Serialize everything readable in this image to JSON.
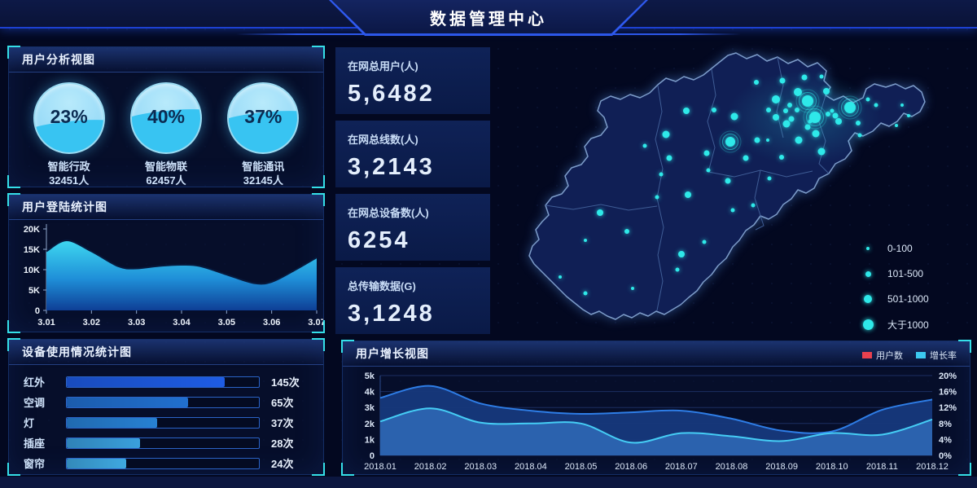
{
  "header": {
    "title": "数据管理中心"
  },
  "panels": {
    "user_analysis": {
      "title": "用户分析视图",
      "gauges": [
        {
          "pct": 23,
          "label": "智能行政",
          "count": "32451人"
        },
        {
          "pct": 40,
          "label": "智能物联",
          "count": "62457人"
        },
        {
          "pct": 37,
          "label": "智能通讯",
          "count": "32145人"
        }
      ]
    },
    "login_stats": {
      "title": "用户登陆统计图"
    },
    "device_usage": {
      "title": "设备使用情况统计图"
    },
    "user_growth": {
      "title": "用户增长视图"
    }
  },
  "stat_cards": [
    {
      "label": "在网总用户(人)",
      "value": "5,6482"
    },
    {
      "label": "在网总线数(人)",
      "value": "3,2143"
    },
    {
      "label": "在网总设备数(人)",
      "value": "6254"
    },
    {
      "label": "总传输数据(G)",
      "value": "3,1248"
    }
  ],
  "map": {
    "dot_color": "#2ee9e9",
    "legend": [
      {
        "label": "0-100",
        "dot": 4
      },
      {
        "label": "101-500",
        "dot": 7
      },
      {
        "label": "501-1000",
        "dot": 10
      },
      {
        "label": "大于1000",
        "dot": 13
      }
    ],
    "points": [
      {
        "x": 380,
        "y": 79,
        "r": 7,
        "halo": true
      },
      {
        "x": 389,
        "y": 99,
        "r": 7,
        "halo": true
      },
      {
        "x": 432,
        "y": 87,
        "r": 7,
        "halo": true
      },
      {
        "x": 285,
        "y": 129,
        "r": 6,
        "halo": true
      },
      {
        "x": 368,
        "y": 68,
        "r": 5
      },
      {
        "x": 341,
        "y": 77,
        "r": 5
      },
      {
        "x": 403,
        "y": 67,
        "r": 4
      },
      {
        "x": 397,
        "y": 141,
        "r": 4.5
      },
      {
        "x": 390,
        "y": 119,
        "r": 4.5
      },
      {
        "x": 369,
        "y": 127,
        "r": 4.5
      },
      {
        "x": 354,
        "y": 107,
        "r": 4.5
      },
      {
        "x": 290,
        "y": 98,
        "r": 4.5
      },
      {
        "x": 206,
        "y": 120,
        "r": 4.5
      },
      {
        "x": 231,
        "y": 91,
        "r": 4
      },
      {
        "x": 210,
        "y": 149,
        "r": 3.5
      },
      {
        "x": 233,
        "y": 194,
        "r": 4
      },
      {
        "x": 304,
        "y": 149,
        "r": 3.5
      },
      {
        "x": 282,
        "y": 177,
        "r": 3.5
      },
      {
        "x": 318,
        "y": 127,
        "r": 3.5
      },
      {
        "x": 348,
        "y": 148,
        "r": 3
      },
      {
        "x": 125,
        "y": 216,
        "r": 4
      },
      {
        "x": 225,
        "y": 267,
        "r": 4
      },
      {
        "x": 256,
        "y": 143,
        "r": 3.5
      },
      {
        "x": 341,
        "y": 99,
        "r": 4
      },
      {
        "x": 265,
        "y": 90,
        "r": 3
      },
      {
        "x": 317,
        "y": 56,
        "r": 3
      },
      {
        "x": 349,
        "y": 54,
        "r": 3.5
      },
      {
        "x": 376,
        "y": 50,
        "r": 3.5
      },
      {
        "x": 332,
        "y": 90,
        "r": 3
      },
      {
        "x": 353,
        "y": 91,
        "r": 3
      },
      {
        "x": 358,
        "y": 84,
        "r": 3
      },
      {
        "x": 360,
        "y": 101,
        "r": 3.5
      },
      {
        "x": 367,
        "y": 90,
        "r": 3
      },
      {
        "x": 380,
        "y": 111,
        "r": 3.5
      },
      {
        "x": 405,
        "y": 95,
        "r": 3
      },
      {
        "x": 414,
        "y": 97,
        "r": 3.5
      },
      {
        "x": 410,
        "y": 91,
        "r": 2.5
      },
      {
        "x": 418,
        "y": 104,
        "r": 4
      },
      {
        "x": 442,
        "y": 106,
        "r": 3
      },
      {
        "x": 454,
        "y": 77,
        "r": 2.5
      },
      {
        "x": 464,
        "y": 84,
        "r": 2.5
      },
      {
        "x": 331,
        "y": 127,
        "r": 2
      },
      {
        "x": 333,
        "y": 174,
        "r": 2.5
      },
      {
        "x": 288,
        "y": 213,
        "r": 2.5
      },
      {
        "x": 313,
        "y": 207,
        "r": 2.5
      },
      {
        "x": 258,
        "y": 164,
        "r": 2.5
      },
      {
        "x": 200,
        "y": 169,
        "r": 2.5
      },
      {
        "x": 180,
        "y": 134,
        "r": 2.5
      },
      {
        "x": 158,
        "y": 239,
        "r": 3
      },
      {
        "x": 220,
        "y": 286,
        "r": 2.5
      },
      {
        "x": 165,
        "y": 309,
        "r": 2
      },
      {
        "x": 107,
        "y": 315,
        "r": 2.5
      },
      {
        "x": 76,
        "y": 295,
        "r": 2
      },
      {
        "x": 107,
        "y": 250,
        "r": 2
      },
      {
        "x": 195,
        "y": 197,
        "r": 2.5
      },
      {
        "x": 397,
        "y": 49,
        "r": 2.5
      },
      {
        "x": 383,
        "y": 104,
        "r": 2.5
      },
      {
        "x": 444,
        "y": 121,
        "r": 2.5
      },
      {
        "x": 253,
        "y": 252,
        "r": 2.5
      },
      {
        "x": 496,
        "y": 84,
        "r": 2
      },
      {
        "x": 504,
        "y": 97,
        "r": 2
      },
      {
        "x": 489,
        "y": 109,
        "r": 2
      }
    ]
  },
  "chart_data": [
    {
      "id": "login_trend",
      "type": "area",
      "title": "用户登陆统计图",
      "x_ticks": [
        "3.01",
        "3.02",
        "3.03",
        "3.04",
        "3.05",
        "3.06",
        "3.07"
      ],
      "y_ticks": [
        "0",
        "5K",
        "10K",
        "15K",
        "20K"
      ],
      "ylim": [
        0,
        20000
      ],
      "fill_top": "#3ed8f0",
      "fill_bottom": "#0e3f96",
      "edge_color": "#07193c",
      "points": [
        {
          "x": 0,
          "y": 14500
        },
        {
          "x": 0.45,
          "y": 17200
        },
        {
          "x": 1,
          "y": 14500
        },
        {
          "x": 1.6,
          "y": 10800
        },
        {
          "x": 2,
          "y": 10300
        },
        {
          "x": 2.5,
          "y": 10900
        },
        {
          "x": 3,
          "y": 11200
        },
        {
          "x": 3.4,
          "y": 10900
        },
        {
          "x": 4,
          "y": 8800
        },
        {
          "x": 4.6,
          "y": 6700
        },
        {
          "x": 5,
          "y": 7000
        },
        {
          "x": 5.5,
          "y": 9800
        },
        {
          "x": 6,
          "y": 13000
        }
      ]
    },
    {
      "id": "device_usage",
      "type": "bar",
      "title": "设备使用情况统计图",
      "categories": [
        "红外",
        "空调",
        "灯",
        "插座",
        "窗帘"
      ],
      "values": [
        145,
        65,
        37,
        28,
        24
      ],
      "unit": "次",
      "bar_pct": [
        82,
        63,
        47,
        38,
        31
      ],
      "bar_colors": [
        "#1e5ce4",
        "#2170cf",
        "#2781d3",
        "#3aa0dc",
        "#3fa9e0"
      ]
    },
    {
      "id": "user_growth",
      "type": "area",
      "title": "用户增长视图",
      "categories": [
        "2018.01",
        "2018.02",
        "2018.03",
        "2018.04",
        "2018.05",
        "2018.06",
        "2018.07",
        "2018.08",
        "2018.09",
        "2018.10",
        "2018.11",
        "2018.12"
      ],
      "left_ticks": [
        "0",
        "1k",
        "2k",
        "3k",
        "4k",
        "5k"
      ],
      "right_ticks": [
        "0%",
        "4%",
        "8%",
        "12%",
        "16%",
        "20%"
      ],
      "ylim_left": [
        0,
        5000
      ],
      "ylim_right": [
        0,
        20
      ],
      "grid_color": "#1c2e61",
      "series": [
        {
          "name": "用户数",
          "axis": "left",
          "swatch": "#e8414f",
          "line_color": "#2e7de6",
          "fill_color": "#16387c",
          "values": [
            3600,
            4350,
            3250,
            2800,
            2600,
            2700,
            2800,
            2300,
            1550,
            1500,
            2850,
            3500
          ]
        },
        {
          "name": "增长率",
          "axis": "right",
          "swatch": "#3cc9f0",
          "line_color": "#45cdf5",
          "fill_color": "#2d64b0",
          "values": [
            8.5,
            11.8,
            8.2,
            8.0,
            8.0,
            3.2,
            5.6,
            4.8,
            3.6,
            5.6,
            5.2,
            9.0
          ]
        }
      ]
    }
  ]
}
